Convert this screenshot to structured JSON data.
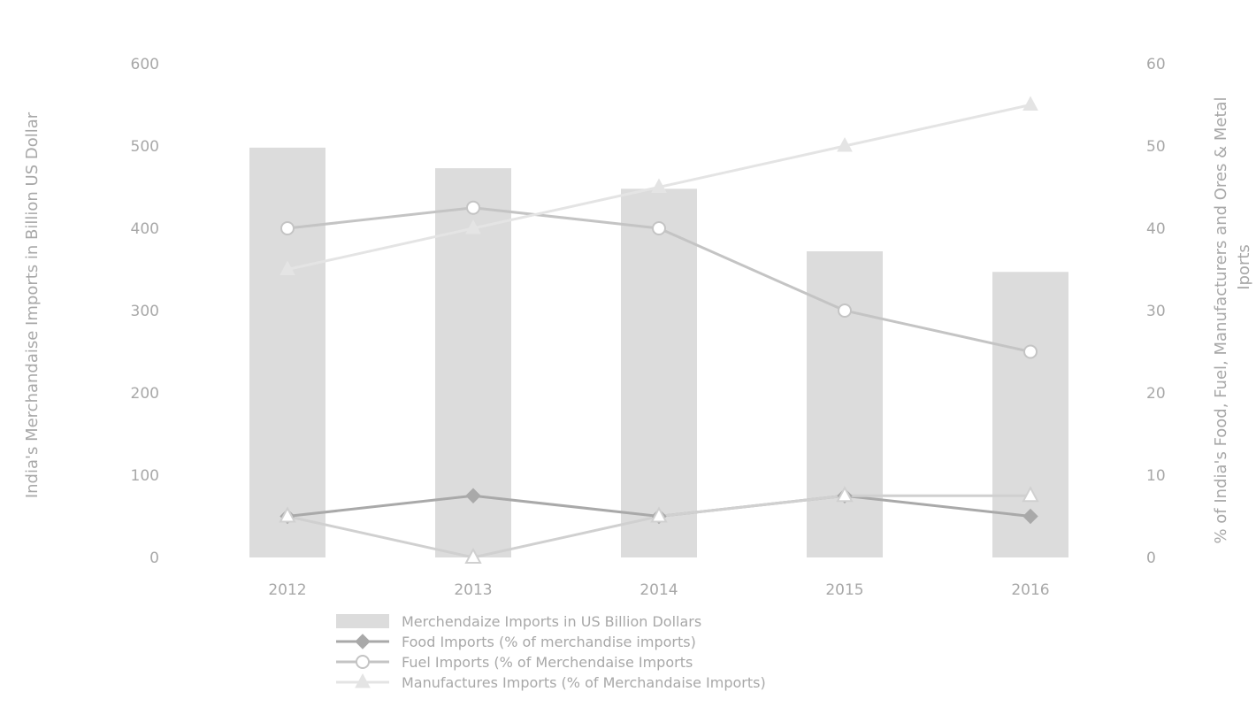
{
  "chart_data": {
    "type": "bar",
    "categories": [
      "2012",
      "2013",
      "2014",
      "2015",
      "2016"
    ],
    "y_left": {
      "label": "India's Merchandaise Imports in Billion US Dollar",
      "lim": [
        0,
        600
      ],
      "ticks": [
        "0",
        "100",
        "200",
        "300",
        "400",
        "500",
        "600"
      ]
    },
    "y_right": {
      "label_line1": "% of India's Food, Fuel, Manufacturers and Ores & Metal",
      "label_line2": "Iports",
      "lim": [
        0,
        60
      ],
      "ticks": [
        "0",
        "10",
        "20",
        "30",
        "40",
        "50",
        "60"
      ]
    },
    "series": [
      {
        "name": "Merchendaize Imports in US Billion Dollars",
        "kind": "bar",
        "axis": "left",
        "color": "#dcdcdc",
        "values": [
          498,
          473,
          448,
          372,
          347
        ]
      },
      {
        "name": "Food Imports (% of merchandise imports)",
        "kind": "line",
        "axis": "right",
        "marker": "diamond",
        "color": "#a9a9a9",
        "values": [
          5,
          7.5,
          5,
          7.5,
          5
        ]
      },
      {
        "name": "Fuel Imports (% of Merchendaise Imports",
        "kind": "line",
        "axis": "right",
        "marker": "circle",
        "color": "#c4c4c4",
        "values": [
          40,
          42.5,
          40,
          30,
          25
        ]
      },
      {
        "name": "Manufactures Imports (% of Merchandaise Imports)",
        "kind": "line",
        "axis": "right",
        "marker": "triangle",
        "color": "#e4e4e4",
        "values": [
          35,
          40,
          45,
          50,
          55
        ]
      },
      {
        "name": "",
        "kind": "line",
        "axis": "right",
        "marker": "triangle-outline",
        "color": "#d0d0d0",
        "values": [
          5,
          0,
          5,
          7.5,
          7.5
        ]
      }
    ],
    "grid": false,
    "legend_position": "bottom"
  }
}
